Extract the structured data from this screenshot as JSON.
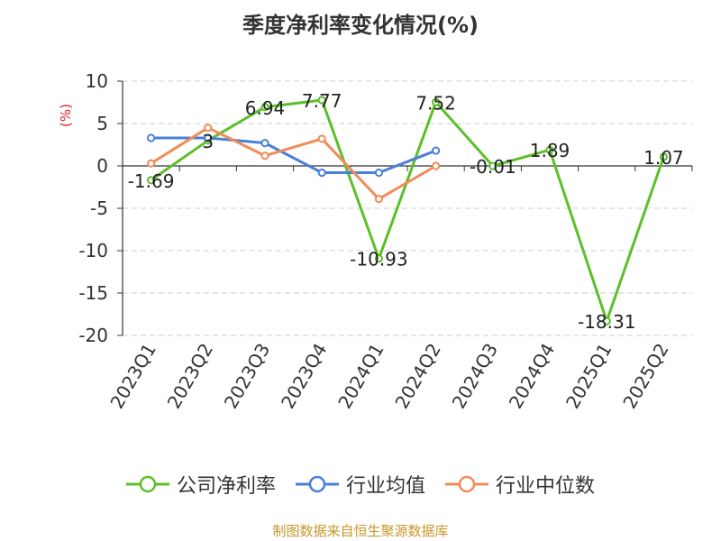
{
  "chart_data": {
    "type": "line",
    "title": "季度净利率变化情况(%)",
    "ylabel": "(%)",
    "xlabel": "",
    "categories": [
      "2023Q1",
      "2023Q2",
      "2023Q3",
      "2023Q4",
      "2024Q1",
      "2024Q2",
      "2024Q3",
      "2024Q4",
      "2025Q1",
      "2025Q2"
    ],
    "ylim": [
      -20,
      10
    ],
    "yticks": [
      10,
      5,
      0,
      -5,
      -10,
      -15,
      -20
    ],
    "grid": "horizontal-dashed",
    "legend_position": "bottom",
    "series": [
      {
        "name": "公司净利率",
        "color": "#5cbf2a",
        "values": [
          -1.69,
          3,
          6.94,
          7.77,
          -10.93,
          7.52,
          -0.01,
          1.89,
          -18.31,
          1.07
        ],
        "labels": [
          "-1.69",
          "3",
          "6.94",
          "7.77",
          "-10.93",
          "7.52",
          "-0.01",
          "1.89",
          "-18.31",
          "1.07"
        ]
      },
      {
        "name": "行业均值",
        "color": "#4a7fd8",
        "values": [
          3.3,
          3.3,
          2.7,
          -0.8,
          -0.8,
          1.8,
          null,
          null,
          null,
          null
        ]
      },
      {
        "name": "行业中位数",
        "color": "#f08c5a",
        "values": [
          0.3,
          4.5,
          1.2,
          3.2,
          -3.9,
          0.0,
          null,
          null,
          null,
          null
        ]
      }
    ]
  },
  "source_note": "制图数据来自恒生聚源数据库"
}
